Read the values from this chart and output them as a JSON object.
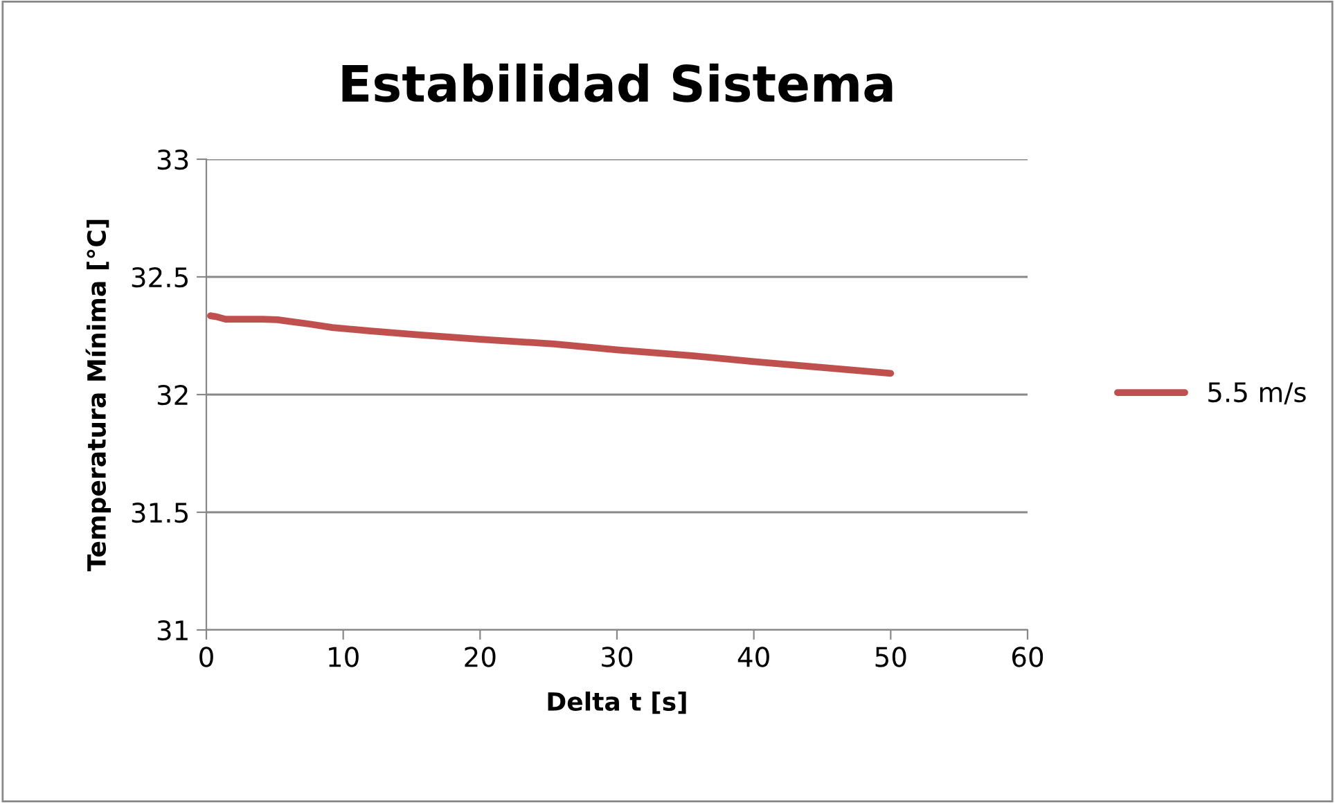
{
  "chart_data": {
    "type": "line",
    "title": "Estabilidad Sistema",
    "xlabel": "Delta t [s]",
    "ylabel": "Temperatura Mínima [°C]",
    "series": [
      {
        "name": "5.5 m/s",
        "color": "#c0504d",
        "x": [
          0.3,
          0.8,
          1.4,
          2.5,
          4.1,
          5.2,
          6.2,
          7.5,
          9.2,
          12,
          15.3,
          20,
          25.4,
          30,
          35.5,
          40,
          45,
          50
        ],
        "values": [
          32.335,
          32.33,
          32.32,
          32.32,
          32.32,
          32.318,
          32.31,
          32.3,
          32.285,
          32.27,
          32.255,
          32.235,
          32.215,
          32.19,
          32.165,
          32.14,
          32.115,
          32.09
        ]
      }
    ],
    "xlim": [
      0,
      60
    ],
    "xticks": [
      0,
      10,
      20,
      30,
      40,
      50,
      60
    ],
    "ylim": [
      31,
      33
    ],
    "yticks": [
      31,
      31.5,
      32,
      32.5,
      33
    ],
    "grid": "y",
    "legend": "right",
    "marker": "none",
    "line_style": "solid"
  }
}
